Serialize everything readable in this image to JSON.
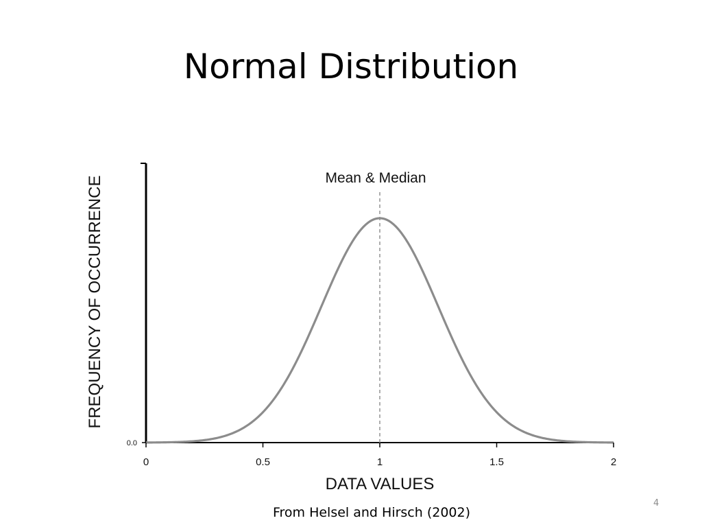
{
  "slide": {
    "title": "Normal Distribution",
    "caption": "From Helsel and Hirsch (2002)",
    "page_number": "4"
  },
  "chart_data": {
    "type": "line",
    "title": "",
    "xlabel": "DATA VALUES",
    "ylabel": "FREQUENCY OF OCCURRENCE",
    "xlim": [
      0,
      2
    ],
    "x_ticks": [
      {
        "value": 0,
        "label": "0"
      },
      {
        "value": 0.5,
        "label": "0.5"
      },
      {
        "value": 1,
        "label": "1"
      },
      {
        "value": 1.5,
        "label": "1.5"
      },
      {
        "value": 2,
        "label": "2"
      }
    ],
    "y_ticks": [
      {
        "value": 0,
        "label": "0.0"
      }
    ],
    "grid": false,
    "distribution": {
      "kind": "normal",
      "mean": 1,
      "sd": 0.25
    },
    "annotation": {
      "text": "Mean & Median",
      "x": 1,
      "style": "dashed-vertical-line"
    },
    "colors": {
      "curve": "#8c8c8c",
      "axis": "#000000",
      "marker": "#999999"
    }
  }
}
